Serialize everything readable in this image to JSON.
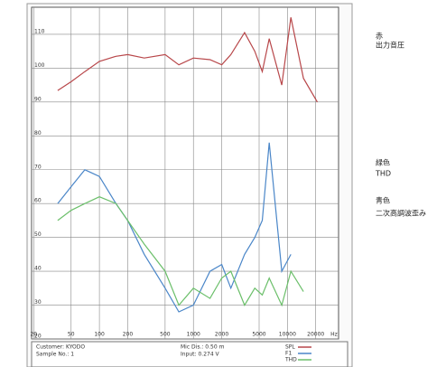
{
  "chart_data": {
    "type": "line",
    "x": [
      36,
      50,
      70,
      100,
      150,
      200,
      300,
      500,
      700,
      1000,
      1500,
      2000,
      2500,
      3500,
      4500,
      5400,
      6400,
      8700,
      10900,
      14800,
      20800
    ],
    "series": [
      {
        "name": "SPL",
        "color": "#b8474a",
        "values": [
          93.4,
          96,
          99,
          102,
          103.5,
          104,
          103,
          104,
          101,
          103,
          102.5,
          101,
          104,
          110.5,
          105,
          99,
          108.7,
          95,
          115,
          97,
          90
        ]
      },
      {
        "name": "F1",
        "color": "#4a86c8",
        "values": [
          60,
          65,
          70,
          68,
          60,
          55,
          45,
          35,
          28,
          30,
          40,
          42,
          35,
          45,
          50,
          55,
          78,
          40,
          45,
          null,
          null
        ]
      },
      {
        "name": "THD",
        "color": "#6bbf6a",
        "values": [
          55,
          58,
          60,
          62,
          60,
          55,
          48,
          40,
          30,
          35,
          32,
          38,
          40,
          30,
          35,
          33,
          38,
          30,
          40,
          34,
          null
        ]
      }
    ],
    "xlim": [
      19,
      35000
    ],
    "xlog": true,
    "xticks": [
      20,
      50,
      100,
      200,
      500,
      1000,
      2000,
      5000,
      10000,
      20000
    ],
    "ylim": [
      20,
      118
    ],
    "yticks": [
      20,
      30,
      40,
      50,
      60,
      70,
      80,
      90,
      100,
      110
    ],
    "x_unit": "Hz",
    "grid": true,
    "annotations": [
      "赤",
      "出力音圧",
      "緑色",
      "THD",
      "青色",
      "二次高調波歪み"
    ],
    "info": [
      "Customer: KYODO",
      "Sample No.: 1",
      "Mic Dis.: 0.50 m",
      "Input: 0.274 V"
    ]
  }
}
